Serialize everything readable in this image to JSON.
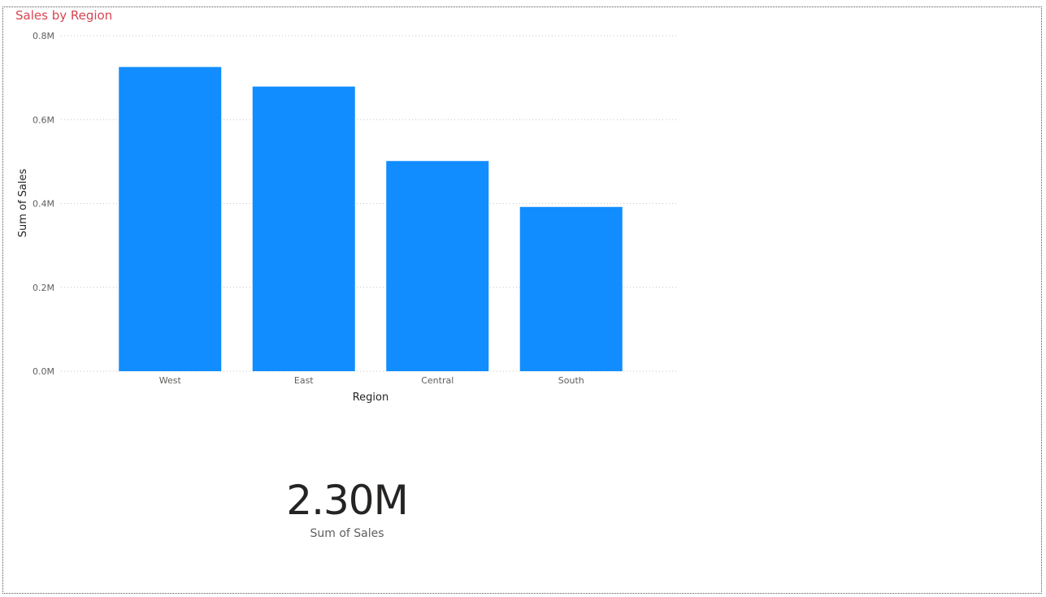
{
  "visual": {
    "title": "Sales by Region"
  },
  "card": {
    "value": "2.30M",
    "label": "Sum of Sales"
  },
  "chart_data": {
    "type": "bar",
    "title": "Sales by Region",
    "xlabel": "Region",
    "ylabel": "Sum of Sales",
    "categories": [
      "West",
      "East",
      "Central",
      "South"
    ],
    "values": [
      725458,
      678781,
      501240,
      391722
    ],
    "ylim": [
      0,
      800000
    ],
    "y_ticks": [
      {
        "value": 0,
        "label": "0.0M"
      },
      {
        "value": 200000,
        "label": "0.2M"
      },
      {
        "value": 400000,
        "label": "0.4M"
      },
      {
        "value": 600000,
        "label": "0.6M"
      },
      {
        "value": 800000,
        "label": "0.8M"
      }
    ],
    "grid": true,
    "bar_color": "#118DFF",
    "title_color": "#D64550"
  }
}
